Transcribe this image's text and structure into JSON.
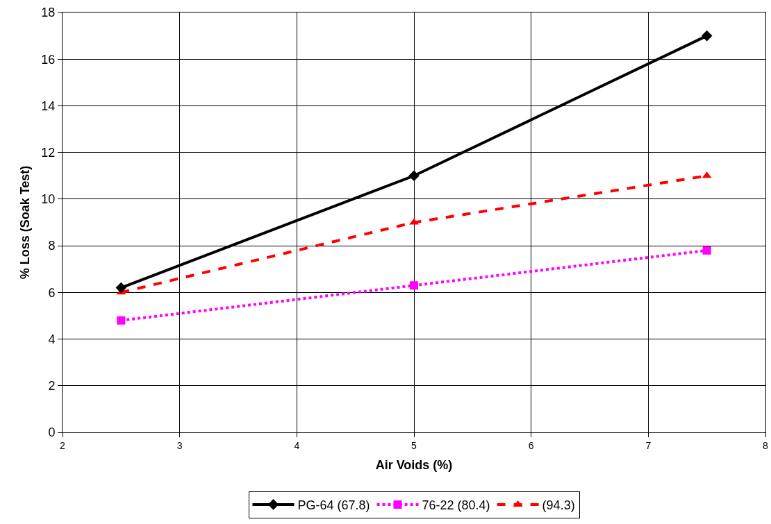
{
  "chart_data": {
    "type": "line",
    "xlabel": "Air Voids (%)",
    "ylabel": "% Loss (Soak Test)",
    "x": [
      2.5,
      5,
      7.5
    ],
    "series": [
      {
        "name": "PG-64 (67.8)",
        "color": "#000000",
        "marker": "diamond",
        "line_style": "solid",
        "values": [
          6.2,
          11,
          17
        ]
      },
      {
        "name": "76-22 (80.4)",
        "color": "#ff00ff",
        "marker": "square",
        "line_style": "dotted",
        "values": [
          4.8,
          6.3,
          7.8
        ]
      },
      {
        "name": "(94.3)",
        "color": "#ff0000",
        "marker": "triangle",
        "line_style": "dashed",
        "values": [
          6.0,
          9.0,
          11.0
        ]
      }
    ],
    "xlim": [
      2,
      8
    ],
    "xticks": [
      2,
      3,
      4,
      5,
      6,
      7,
      8
    ],
    "ylim": [
      0,
      18
    ],
    "yticks": [
      0,
      2,
      4,
      6,
      8,
      10,
      12,
      14,
      16,
      18
    ],
    "grid": true,
    "legend": "bottom"
  }
}
